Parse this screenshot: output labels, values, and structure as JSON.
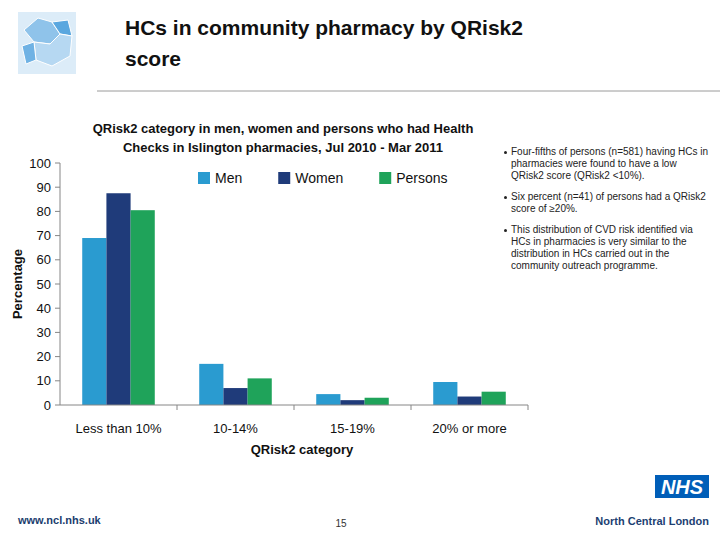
{
  "header": {
    "title": "HCs in community pharmacy by QRisk2 score"
  },
  "chart_data": {
    "type": "bar",
    "title": "QRisk2 category in men, women and persons who had Health Checks in Islington pharmacies, Jul 2010 - Mar 2011",
    "x_label": "QRisk2 category",
    "y_label": "Percentage",
    "categories": [
      "Less than 10%",
      "10-14%",
      "15-19%",
      "20% or more"
    ],
    "series": [
      {
        "name": "Men",
        "color": "#2a9bd0",
        "values": [
          69,
          17,
          4.5,
          9.5
        ]
      },
      {
        "name": "Women",
        "color": "#1f3b7a",
        "values": [
          87.5,
          7,
          2,
          3.5
        ]
      },
      {
        "name": "Persons",
        "color": "#1fa35a",
        "values": [
          80.5,
          11,
          3,
          5.5
        ]
      }
    ],
    "ylim": [
      0,
      100
    ],
    "yticks": [
      0,
      10,
      20,
      30,
      40,
      50,
      60,
      70,
      80,
      90,
      100
    ],
    "grid": false,
    "legend": "top"
  },
  "notes": [
    "Four-fifths of persons (n=581) having HCs in pharmacies were found to have a low QRisk2 score (QRisk2 <10%).",
    "Six percent (n=41) of persons had a QRisk2 score of ≥20%.",
    "This distribution of CVD risk identified via HCs in pharmacies is very similar to the distribution in HCs carried out in the community outreach programme."
  ],
  "footer": {
    "url": "www.ncl.nhs.uk",
    "page": "15",
    "logo": "NHS",
    "organisation": "North Central London"
  }
}
